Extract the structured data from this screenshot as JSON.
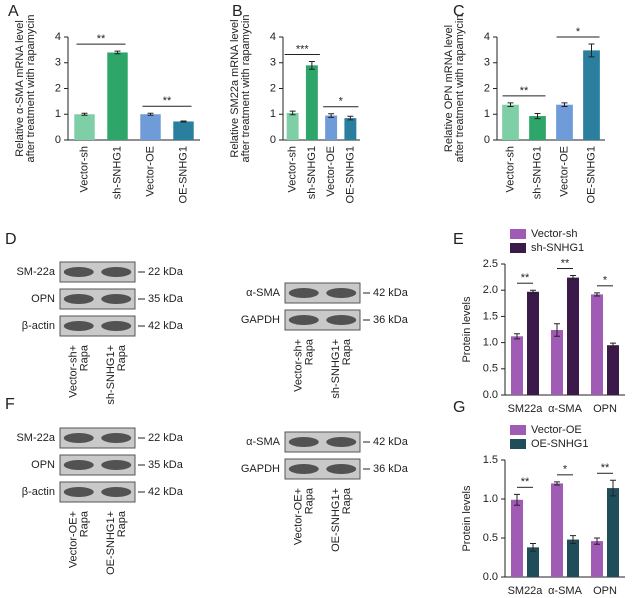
{
  "chart_data": [
    {
      "type": "bar",
      "panel_label": "A",
      "y_label": [
        "Relative α-SMA mRNA level",
        "after treatment with rapamycin"
      ],
      "categories": [
        "Vector-sh",
        "sh-SNHG1",
        "Vector-OE",
        "OE-SNHG1"
      ],
      "values": [
        1.0,
        3.4,
        1.0,
        0.72
      ],
      "errors": [
        0.04,
        0.05,
        0.04,
        0.02
      ],
      "colors": [
        "#7fcfa6",
        "#2ea66a",
        "#6f9bd8",
        "#2a7f9e"
      ],
      "ylim": [
        0,
        4
      ],
      "yticks": [
        0,
        1,
        2,
        3,
        4
      ],
      "significance": [
        {
          "bracket": [
            0,
            1
          ],
          "label": "**"
        },
        {
          "bracket": [
            2,
            3
          ],
          "label": "**"
        }
      ]
    },
    {
      "type": "bar",
      "panel_label": "B",
      "y_label": [
        "Relative SM22a mRNA level",
        "after treatment with rapamycin"
      ],
      "categories": [
        "Vector-sh",
        "sh-SNHG1",
        "Vector-OE",
        "OE-SNHG1"
      ],
      "values": [
        1.05,
        2.9,
        0.95,
        0.85
      ],
      "errors": [
        0.07,
        0.15,
        0.07,
        0.07
      ],
      "colors": [
        "#7fcfa6",
        "#2ea66a",
        "#6f9bd8",
        "#2a7f9e"
      ],
      "ylim": [
        0,
        4
      ],
      "yticks": [
        0,
        1,
        2,
        3,
        4
      ],
      "significance": [
        {
          "bracket": [
            0,
            1
          ],
          "label": "***"
        },
        {
          "bracket": [
            2,
            3
          ],
          "label": "*"
        }
      ]
    },
    {
      "type": "bar",
      "panel_label": "C",
      "y_label": [
        "Relative OPN mRNA level",
        "after treatment with rapamycin"
      ],
      "categories": [
        "Vector-sh",
        "sh-SNHG1",
        "Vector-OE",
        "OE-SNHG1"
      ],
      "values": [
        1.37,
        0.93,
        1.37,
        3.48
      ],
      "errors": [
        0.07,
        0.1,
        0.07,
        0.25
      ],
      "colors": [
        "#7fcfa6",
        "#2ea66a",
        "#6f9bd8",
        "#2a7f9e"
      ],
      "ylim": [
        0,
        4
      ],
      "yticks": [
        0,
        1,
        2,
        3,
        4
      ],
      "significance": [
        {
          "bracket": [
            0,
            1
          ],
          "label": "**"
        },
        {
          "bracket": [
            2,
            3
          ],
          "label": "*"
        }
      ]
    },
    {
      "type": "grouped_bar",
      "panel_label": "E",
      "y_label": [
        "Protein levels"
      ],
      "categories": [
        "SM22a",
        "α-SMA",
        "OPN"
      ],
      "series": [
        {
          "name": "Vector-sh",
          "color": "#a05bb5",
          "values": [
            1.12,
            1.24,
            1.92
          ],
          "errors": [
            0.05,
            0.12,
            0.03
          ]
        },
        {
          "name": "sh-SNHG1",
          "color": "#3b1a4a",
          "values": [
            1.97,
            2.24,
            0.95
          ],
          "errors": [
            0.03,
            0.04,
            0.04
          ]
        }
      ],
      "ylim": [
        0,
        2.5
      ],
      "yticks": [
        {
          "value": 0,
          "label": "0.0"
        },
        0.5,
        {
          "value": 1,
          "label": "1.0"
        },
        1.5,
        {
          "value": 2,
          "label": "2.0"
        },
        2.5
      ],
      "significance_labels": [
        "**",
        "**",
        "*"
      ]
    },
    {
      "type": "grouped_bar",
      "panel_label": "G",
      "y_label": [
        "Protein levels"
      ],
      "categories": [
        "SM22a",
        "α-SMA",
        "OPN"
      ],
      "series": [
        {
          "name": "Vector-OE",
          "color": "#a05bb5",
          "values": [
            0.99,
            1.2,
            0.46
          ],
          "errors": [
            0.07,
            0.02,
            0.04
          ]
        },
        {
          "name": "OE-SNHG1",
          "color": "#1f4e5a",
          "values": [
            0.38,
            0.48,
            1.14
          ],
          "errors": [
            0.05,
            0.05,
            0.1
          ]
        }
      ],
      "ylim": [
        0,
        1.5
      ],
      "yticks": [
        {
          "value": 0,
          "label": "0.0"
        },
        0.5,
        {
          "value": 1,
          "label": "1.0"
        },
        1.5
      ],
      "significance_labels": [
        "**",
        "*",
        "**"
      ]
    }
  ],
  "blots": [
    {
      "panel_label": "D",
      "groups": [
        {
          "rows": [
            "SM-22a",
            "OPN",
            "β-actin"
          ],
          "kda": [
            "22 kDa",
            "35 kDa",
            "42 kDa"
          ],
          "lanes": [
            [
              "Vector-sh+",
              "Rapa"
            ],
            [
              "sh-SNHG1+",
              "Rapa"
            ]
          ]
        },
        {
          "rows": [
            "α-SMA",
            "GAPDH"
          ],
          "kda": [
            "42 kDa",
            "36 kDa"
          ],
          "lanes": [
            [
              "Vector-sh+",
              "Rapa"
            ],
            [
              "sh-SNHG1+",
              "Rapa"
            ]
          ]
        }
      ]
    },
    {
      "panel_label": "F",
      "groups": [
        {
          "rows": [
            "SM-22a",
            "OPN",
            "β-actin"
          ],
          "kda": [
            "22 kDa",
            "35 kDa",
            "42 kDa"
          ],
          "lanes": [
            [
              "Vector-OE+",
              "Rapa"
            ],
            [
              "OE-SNHG1+",
              "Rapa"
            ]
          ]
        },
        {
          "rows": [
            "α-SMA",
            "GAPDH"
          ],
          "kda": [
            "42 kDa",
            "36 kDa"
          ],
          "lanes": [
            [
              "Vector-OE+",
              "Rapa"
            ],
            [
              "OE-SNHG1+",
              "Rapa"
            ]
          ]
        }
      ]
    }
  ]
}
